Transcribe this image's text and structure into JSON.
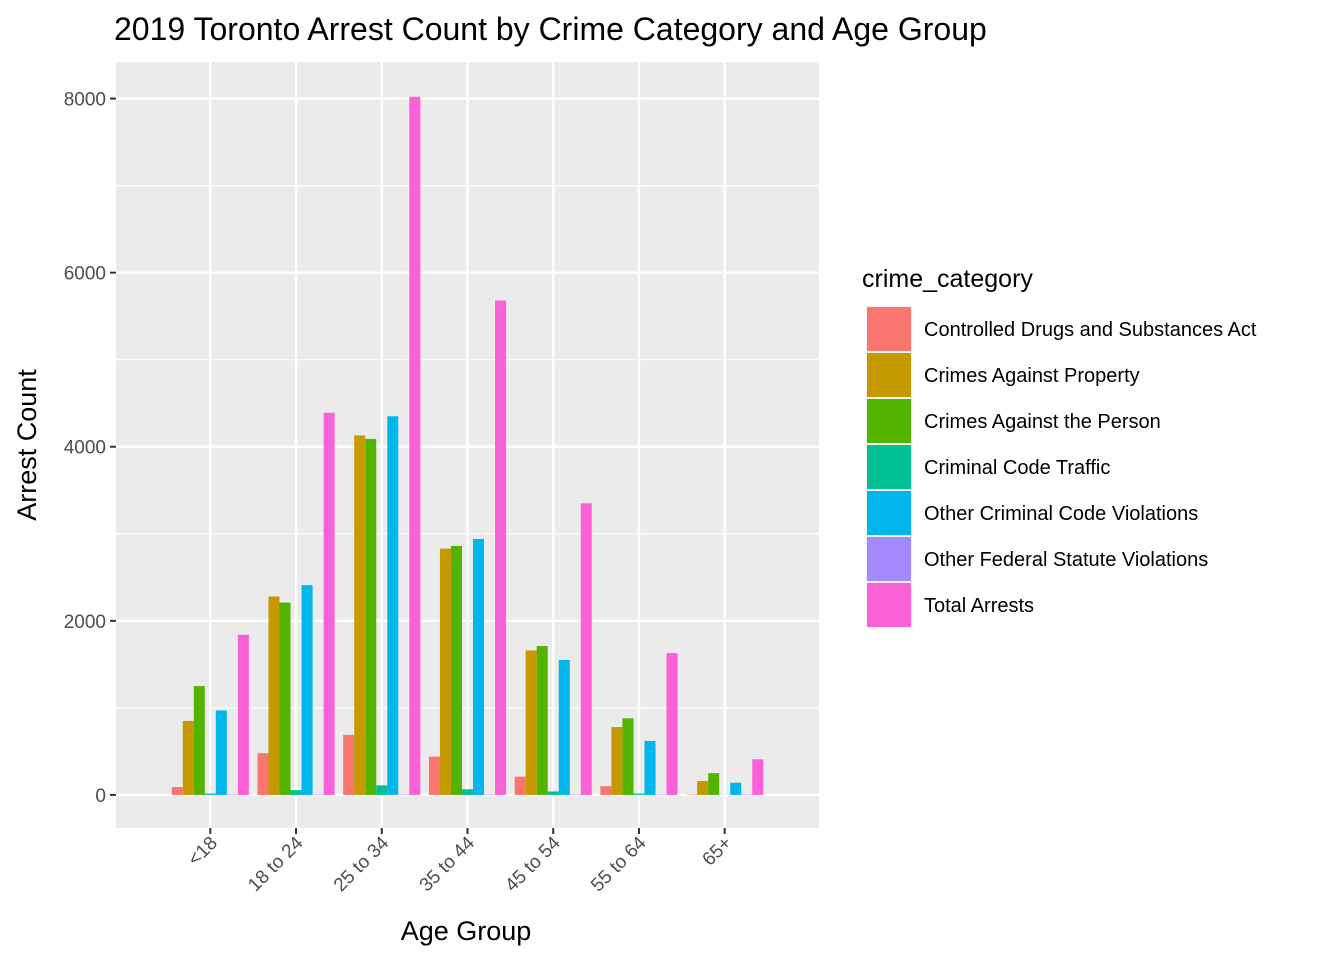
{
  "chart_data": {
    "type": "bar",
    "title": "2019 Toronto Arrest Count by Crime Category and Age Group",
    "xlabel": "Age Group",
    "ylabel": "Arrest Count",
    "categories": [
      "<18",
      "18 to 24",
      "25 to 34",
      "35 to 44",
      "45 to 54",
      "55 to 64",
      "65+"
    ],
    "yticks": [
      0,
      2000,
      4000,
      6000,
      8000
    ],
    "ylim": [
      -380,
      8420
    ],
    "grid": true,
    "legend": {
      "title": "crime_category",
      "position": "right"
    },
    "series": [
      {
        "name": "Controlled Drugs and Substances Act",
        "color": "#F8766D",
        "values": [
          90,
          480,
          690,
          440,
          210,
          100,
          5
        ]
      },
      {
        "name": "Crimes Against Property",
        "color": "#C49A00",
        "values": [
          850,
          2280,
          4130,
          2830,
          1660,
          780,
          160
        ]
      },
      {
        "name": "Crimes Against the Person",
        "color": "#53B400",
        "values": [
          1250,
          2210,
          4090,
          2860,
          1710,
          880,
          250
        ]
      },
      {
        "name": "Criminal Code Traffic",
        "color": "#00C094",
        "values": [
          15,
          55,
          110,
          65,
          40,
          15,
          2
        ]
      },
      {
        "name": "Other Criminal Code Violations",
        "color": "#00B6EB",
        "values": [
          970,
          2410,
          4350,
          2940,
          1550,
          620,
          140
        ]
      },
      {
        "name": "Other Federal Statute Violations",
        "color": "#A58AFF",
        "values": [
          5,
          5,
          5,
          5,
          5,
          5,
          5
        ]
      },
      {
        "name": "Total Arrests",
        "color": "#FB61D7",
        "values": [
          1840,
          4390,
          8020,
          5680,
          3350,
          1630,
          410
        ]
      }
    ]
  }
}
